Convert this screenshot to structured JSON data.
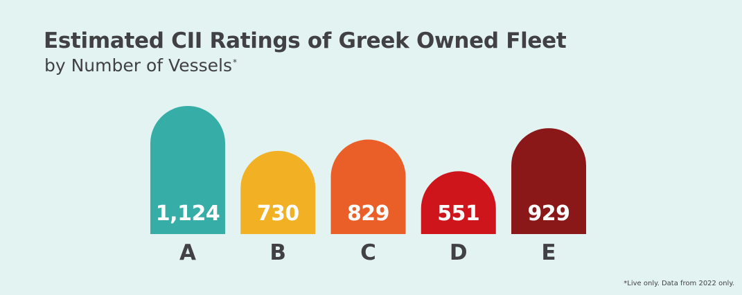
{
  "title": "Estimated CII Ratings of Greek Owned Fleet",
  "subtitle": "by Number of Vessels",
  "subtitle_marker": "*",
  "footnote": "*Live only. Data from 2022 only.",
  "chart_data": {
    "type": "bar",
    "title": "Estimated CII Ratings of Greek Owned Fleet",
    "subtitle": "by Number of Vessels",
    "categories": [
      "A",
      "B",
      "C",
      "D",
      "E"
    ],
    "values": [
      1124,
      730,
      829,
      551,
      929
    ],
    "value_labels": [
      "1,124",
      "730",
      "829",
      "551",
      "929"
    ],
    "colors": [
      "#37ada8",
      "#f2b024",
      "#ea5f27",
      "#cf151c",
      "#8b1818"
    ],
    "bar_shape": "rounded-top",
    "grid": false,
    "legend": "none",
    "xlabel": "",
    "ylabel": ""
  }
}
